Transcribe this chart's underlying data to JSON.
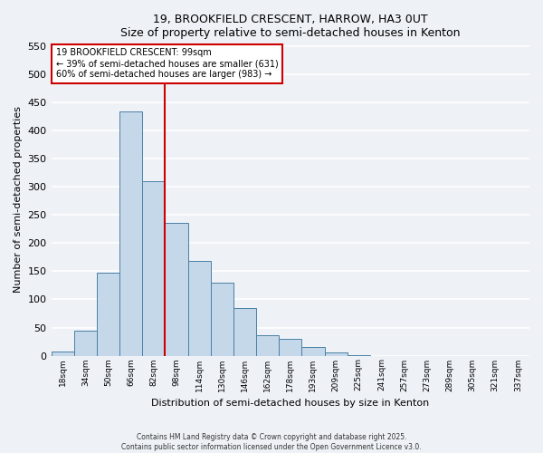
{
  "title1": "19, BROOKFIELD CRESCENT, HARROW, HA3 0UT",
  "title2": "Size of property relative to semi-detached houses in Kenton",
  "bar_labels": [
    "18sqm",
    "34sqm",
    "50sqm",
    "66sqm",
    "82sqm",
    "98sqm",
    "114sqm",
    "130sqm",
    "146sqm",
    "162sqm",
    "178sqm",
    "193sqm",
    "209sqm",
    "225sqm",
    "241sqm",
    "257sqm",
    "273sqm",
    "289sqm",
    "305sqm",
    "321sqm",
    "337sqm"
  ],
  "bar_values": [
    8,
    45,
    147,
    435,
    310,
    237,
    168,
    130,
    85,
    37,
    30,
    16,
    5,
    1,
    0,
    0,
    0,
    0,
    0,
    0,
    0
  ],
  "bar_color": "#c5d8ea",
  "bar_edge_color": "#4a7fa5",
  "vline_x_label": "98sqm",
  "vline_color": "#cc0000",
  "annotation_title": "19 BROOKFIELD CRESCENT: 99sqm",
  "annotation_line1": "← 39% of semi-detached houses are smaller (631)",
  "annotation_line2": "60% of semi-detached houses are larger (983) →",
  "xlabel": "Distribution of semi-detached houses by size in Kenton",
  "ylabel": "Number of semi-detached properties",
  "ylim": [
    0,
    555
  ],
  "yticks": [
    0,
    50,
    100,
    150,
    200,
    250,
    300,
    350,
    400,
    450,
    500,
    550
  ],
  "footnote1": "Contains HM Land Registry data © Crown copyright and database right 2025.",
  "footnote2": "Contains public sector information licensed under the Open Government Licence v3.0.",
  "bg_color": "#eef2f7",
  "grid_color": "#ffffff"
}
